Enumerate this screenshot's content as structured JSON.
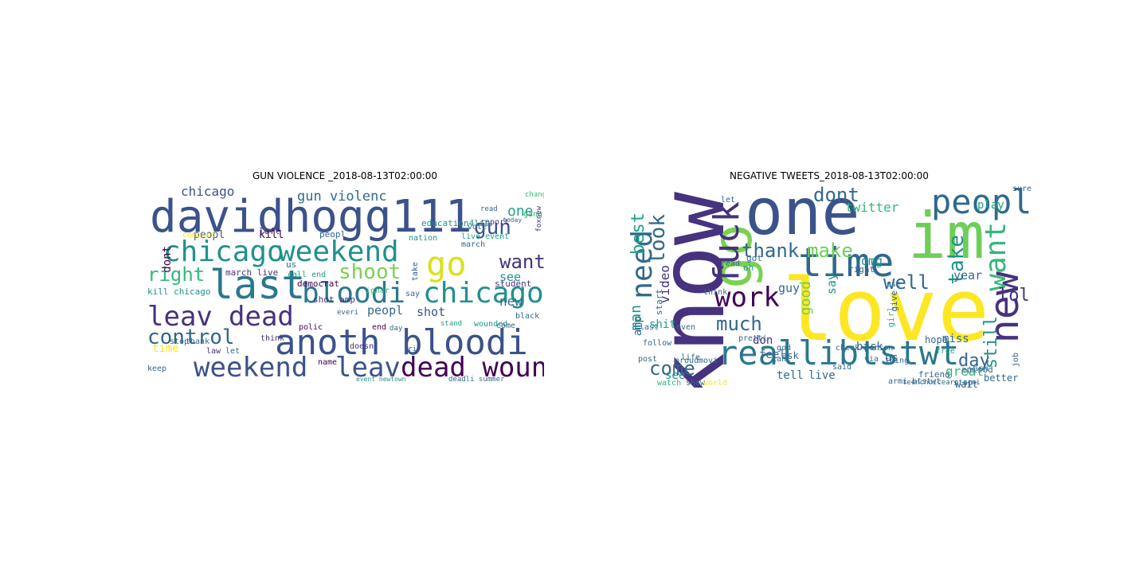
{
  "figure": {
    "left_title": "GUN VIOLENCE _2018-08-13T02:00:00",
    "right_title": "NEGATIVE TWEETS_2018-08-13T02:00:00"
  },
  "palette": [
    "#440154",
    "#46327e",
    "#365c8d",
    "#277f8e",
    "#1fa187",
    "#4ac16d",
    "#a0da39",
    "#fde725"
  ],
  "left_cloud": {
    "words": [
      {
        "text": "davidhogg111",
        "color": "#3b528b"
      },
      {
        "text": "chicago",
        "color": "#21918c"
      },
      {
        "text": "weekend",
        "color": "#21918c"
      },
      {
        "text": "go",
        "color": "#d8e219"
      },
      {
        "text": "last",
        "color": "#2a788e"
      },
      {
        "text": "bloodi",
        "color": "#2a788e"
      },
      {
        "text": "chicago",
        "color": "#21918c"
      },
      {
        "text": "leav",
        "color": "#46327e"
      },
      {
        "text": "dead",
        "color": "#46327e"
      },
      {
        "text": "anoth bloodi",
        "color": "#3b528b"
      },
      {
        "text": "weekend",
        "color": "#3b528b"
      },
      {
        "text": "leav",
        "color": "#3b528b"
      },
      {
        "text": "dead wound",
        "color": "#440154"
      },
      {
        "text": "control",
        "color": "#31688e"
      },
      {
        "text": "right",
        "color": "#35b779"
      },
      {
        "text": "gun",
        "color": "#3b528b"
      },
      {
        "text": "want",
        "color": "#46327e"
      },
      {
        "text": "shoot",
        "color": "#7ad151"
      },
      {
        "text": "chicago",
        "color": "#3b528b"
      },
      {
        "text": "gun violenc",
        "color": "#31688e"
      },
      {
        "text": "one",
        "color": "#1fa187"
      },
      {
        "text": "peopl",
        "color": "#3b528b"
      },
      {
        "text": "kill",
        "color": "#440154"
      },
      {
        "text": "shot",
        "color": "#3b528b"
      },
      {
        "text": "peopl",
        "color": "#31688e"
      },
      {
        "text": "see",
        "color": "#21918c"
      },
      {
        "text": "new",
        "color": "#31688e"
      },
      {
        "text": "time",
        "color": "#fde725"
      },
      {
        "text": "dont",
        "color": "#440154"
      },
      {
        "text": "report",
        "color": "#46327e"
      },
      {
        "text": "education4lib",
        "color": "#21918c"
      },
      {
        "text": "nation",
        "color": "#21918c"
      },
      {
        "text": "march live",
        "color": "#46327e"
      },
      {
        "text": "left",
        "color": "#46327e"
      },
      {
        "text": "peopl",
        "color": "#31688e"
      },
      {
        "text": "us",
        "color": "#31688e"
      },
      {
        "text": "democrat",
        "color": "#440154"
      },
      {
        "text": "kill chicago",
        "color": "#21918c"
      },
      {
        "text": "call end",
        "color": "#1fa187"
      },
      {
        "text": "ignor",
        "color": "#35b779"
      },
      {
        "text": "student",
        "color": "#46327e"
      },
      {
        "text": "shot amp",
        "color": "#46327e"
      },
      {
        "text": "wounded",
        "color": "#21918c"
      },
      {
        "text": "think",
        "color": "#46327e"
      },
      {
        "text": "stop",
        "color": "#31688e"
      },
      {
        "text": "law",
        "color": "#46327e"
      },
      {
        "text": "keep",
        "color": "#31688e"
      },
      {
        "text": "end",
        "color": "#440154"
      },
      {
        "text": "black",
        "color": "#31688e"
      },
      {
        "text": "vote",
        "color": "#31688e"
      },
      {
        "text": "gang",
        "color": "#35b779"
      },
      {
        "text": "read",
        "color": "#31688e"
      },
      {
        "text": "chang",
        "color": "#35b779"
      },
      {
        "text": "complet",
        "color": "#fde725"
      },
      {
        "text": "live event",
        "color": "#1fa187"
      },
      {
        "text": "march",
        "color": "#31688e"
      },
      {
        "text": "come",
        "color": "#31688e"
      },
      {
        "text": "say",
        "color": "#31688e"
      },
      {
        "text": "take",
        "color": "#31688e"
      },
      {
        "text": "name",
        "color": "#440154"
      },
      {
        "text": "let",
        "color": "#31688e"
      },
      {
        "text": "thank",
        "color": "#31688e"
      },
      {
        "text": "doesn",
        "color": "#46327e"
      },
      {
        "text": "polic",
        "color": "#440154"
      },
      {
        "text": "day",
        "color": "#31688e"
      },
      {
        "text": "everi",
        "color": "#31688e"
      },
      {
        "text": "foxnew",
        "color": "#46327e"
      },
      {
        "text": "event newtown",
        "color": "#21918c"
      },
      {
        "text": "deadli summer",
        "color": "#31688e"
      },
      {
        "text": "tri",
        "color": "#31688e"
      },
      {
        "text": "today",
        "color": "#31688e"
      },
      {
        "text": "stand",
        "color": "#1fa187"
      }
    ]
  },
  "right_cloud": {
    "words": [
      {
        "text": "love",
        "color": "#fde725"
      },
      {
        "text": "one",
        "color": "#3b528b"
      },
      {
        "text": "im",
        "color": "#6ece58"
      },
      {
        "text": "know",
        "color": "#46327e"
      },
      {
        "text": "go",
        "color": "#7ad151"
      },
      {
        "text": "time",
        "color": "#31688e"
      },
      {
        "text": "reallibtstwt",
        "color": "#2a788e"
      },
      {
        "text": "peopl",
        "color": "#31688e"
      },
      {
        "text": "new",
        "color": "#46327e"
      },
      {
        "text": "fuck",
        "color": "#46327e"
      },
      {
        "text": "want",
        "color": "#35b779"
      },
      {
        "text": "work",
        "color": "#440154"
      },
      {
        "text": "need",
        "color": "#31688e"
      },
      {
        "text": "look",
        "color": "#31688e"
      },
      {
        "text": "best",
        "color": "#1fa187"
      },
      {
        "text": "thank",
        "color": "#31688e"
      },
      {
        "text": "make",
        "color": "#6ece58"
      },
      {
        "text": "dont",
        "color": "#31688e"
      },
      {
        "text": "take",
        "color": "#21918c"
      },
      {
        "text": "well",
        "color": "#31688e"
      },
      {
        "text": "much",
        "color": "#31688e"
      },
      {
        "text": "come",
        "color": "#31688e"
      },
      {
        "text": "lol",
        "color": "#46327e"
      },
      {
        "text": "still",
        "color": "#21918c"
      },
      {
        "text": "day",
        "color": "#31688e"
      },
      {
        "text": "good",
        "color": "#6ece58"
      },
      {
        "text": "man",
        "color": "#21918c"
      },
      {
        "text": "amp",
        "color": "#31688e"
      },
      {
        "text": "video",
        "color": "#46327e"
      },
      {
        "text": "twitter",
        "color": "#35b779"
      },
      {
        "text": "say",
        "color": "#21918c"
      },
      {
        "text": "year",
        "color": "#31688e"
      },
      {
        "text": "omg",
        "color": "#21918c"
      },
      {
        "text": "guy",
        "color": "#31688e"
      },
      {
        "text": "play",
        "color": "#1fa187"
      },
      {
        "text": "start",
        "color": "#31688e"
      },
      {
        "text": "don",
        "color": "#46327e"
      },
      {
        "text": "feel",
        "color": "#31688e"
      },
      {
        "text": "shit",
        "color": "#1fa187"
      },
      {
        "text": "see",
        "color": "#21918c"
      },
      {
        "text": "tell",
        "color": "#31688e"
      },
      {
        "text": "live",
        "color": "#31688e"
      },
      {
        "text": "back",
        "color": "#31688e"
      },
      {
        "text": "miss",
        "color": "#31688e"
      },
      {
        "text": "great",
        "color": "#35b779"
      },
      {
        "text": "better",
        "color": "#31688e"
      },
      {
        "text": "us",
        "color": "#31688e"
      },
      {
        "text": "girl",
        "color": "#35b779"
      },
      {
        "text": "give",
        "color": "#31688e"
      },
      {
        "text": "wait",
        "color": "#31688e"
      },
      {
        "text": "hope",
        "color": "#31688e"
      },
      {
        "text": "friend",
        "color": "#31688e"
      },
      {
        "text": "episod",
        "color": "#31688e"
      },
      {
        "text": "ask",
        "color": "#31688e"
      },
      {
        "text": "even",
        "color": "#31688e"
      },
      {
        "text": "pretti",
        "color": "#31688e"
      },
      {
        "text": "use",
        "color": "#31688e"
      },
      {
        "text": "right",
        "color": "#31688e"
      },
      {
        "text": "got",
        "color": "#31688e"
      },
      {
        "text": "oh",
        "color": "#1fa187"
      },
      {
        "text": "let",
        "color": "#31688e"
      },
      {
        "text": "read",
        "color": "#31688e"
      },
      {
        "text": "think",
        "color": "#31688e"
      },
      {
        "text": "last",
        "color": "#31688e"
      },
      {
        "text": "god",
        "color": "#31688e"
      },
      {
        "text": "life",
        "color": "#31688e"
      },
      {
        "text": "post",
        "color": "#31688e"
      },
      {
        "text": "watch",
        "color": "#35b779"
      },
      {
        "text": "show",
        "color": "#31688e"
      },
      {
        "text": "world",
        "color": "#fde725"
      },
      {
        "text": "stop",
        "color": "#31688e"
      },
      {
        "text": "wish",
        "color": "#31688e"
      },
      {
        "text": "free",
        "color": "#1fa187"
      },
      {
        "text": "check person",
        "color": "#31688e"
      },
      {
        "text": "armi btstwt",
        "color": "#31688e"
      },
      {
        "text": "thing",
        "color": "#31688e"
      },
      {
        "text": "follow",
        "color": "#31688e"
      },
      {
        "text": "proud",
        "color": "#31688e"
      },
      {
        "text": "movi",
        "color": "#31688e"
      },
      {
        "text": "cant",
        "color": "#31688e"
      },
      {
        "text": "teenchoicearn armi",
        "color": "#31688e"
      },
      {
        "text": "sure",
        "color": "#31688e"
      },
      {
        "text": "said",
        "color": "#31688e"
      },
      {
        "text": "via",
        "color": "#31688e"
      },
      {
        "text": "job",
        "color": "#31688e"
      }
    ]
  }
}
